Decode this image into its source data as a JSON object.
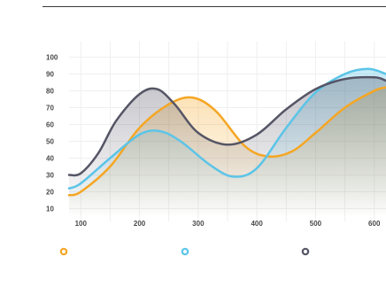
{
  "chart_data": {
    "type": "line",
    "title": "",
    "xlabel": "",
    "ylabel": "",
    "xlim": [
      80,
      620
    ],
    "ylim": [
      5,
      105
    ],
    "x_ticks": [
      100,
      200,
      300,
      400,
      500,
      600
    ],
    "y_ticks": [
      10,
      20,
      30,
      40,
      50,
      60,
      70,
      80,
      90,
      100
    ],
    "grid": true,
    "legend_position": "bottom",
    "series": [
      {
        "color": "#f5a623",
        "x": [
          80,
          100,
          150,
          200,
          250,
          290,
          330,
          380,
          420,
          460,
          500,
          550,
          600,
          620
        ],
        "y": [
          18,
          20,
          35,
          58,
          72,
          76,
          68,
          47,
          41,
          44,
          55,
          70,
          80,
          82
        ]
      },
      {
        "color": "#5bc4e8",
        "x": [
          80,
          100,
          150,
          200,
          235,
          270,
          320,
          360,
          400,
          450,
          500,
          550,
          590,
          620
        ],
        "y": [
          22,
          25,
          40,
          54,
          56,
          50,
          36,
          29,
          34,
          58,
          79,
          90,
          93,
          90
        ]
      },
      {
        "color": "#555566",
        "x": [
          80,
          100,
          130,
          160,
          200,
          230,
          260,
          300,
          350,
          400,
          450,
          500,
          550,
          600,
          620
        ],
        "y": [
          30,
          31,
          43,
          62,
          78,
          81,
          72,
          55,
          48,
          54,
          69,
          81,
          87,
          88,
          86
        ]
      }
    ]
  }
}
